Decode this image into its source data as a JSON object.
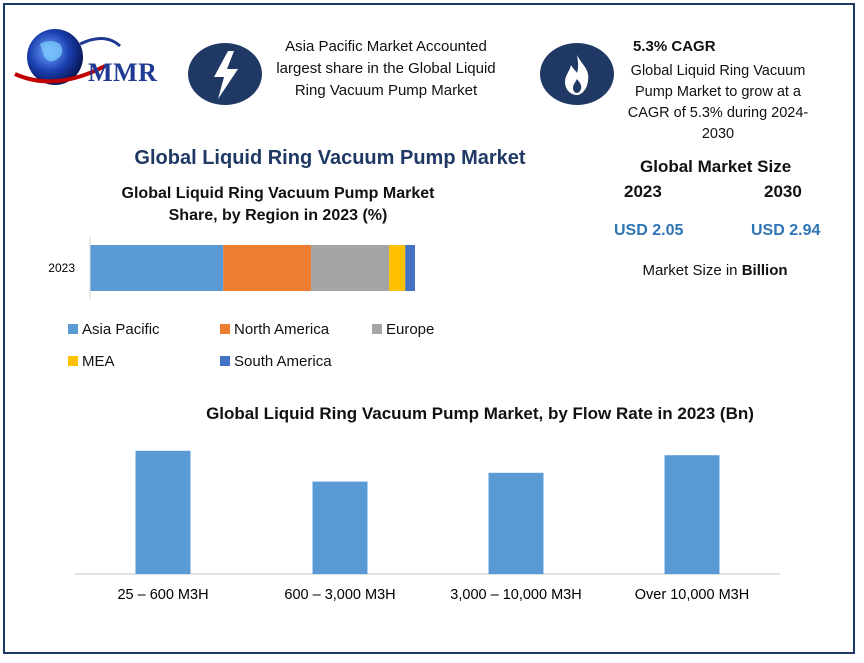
{
  "brand": {
    "logo_text": "MMR"
  },
  "info_left": {
    "icon": "lightning-bolt-icon",
    "lines": [
      "Asia Pacific Market Accounted",
      "largest share in the Global Liquid",
      "Ring Vacuum Pump Market"
    ]
  },
  "info_right": {
    "icon": "flame-icon",
    "title": "5.3% CAGR",
    "lines": [
      "Global Liquid Ring Vacuum",
      "Pump Market to grow at a",
      "CAGR of 5.3% during 2024-",
      "2030"
    ]
  },
  "main_title": "Global Liquid Ring Vacuum Pump Market",
  "market_size": {
    "title": "Global Market Size",
    "year_2023": "2023",
    "year_2030": "2030",
    "value_2023": "USD 2.05",
    "value_2030": "USD 2.94",
    "unit_prefix": "Market Size in",
    "unit_bold": "Billion"
  },
  "colors": {
    "asia_pacific": "#5b9bd5",
    "north_america": "#ed7d31",
    "europe": "#a5a5a5",
    "mea": "#ffc000",
    "south_america": "#4472c4",
    "bar": "#5b9bd5",
    "navy": "#1f3864"
  },
  "chart_data": [
    {
      "type": "bar",
      "orientation": "horizontal-stacked",
      "title": "Global Liquid Ring Vacuum Pump Market Share, by Region in 2023 (%)",
      "categories": [
        "2023"
      ],
      "series": [
        {
          "name": "Asia Pacific",
          "values": [
            41
          ]
        },
        {
          "name": "North America",
          "values": [
            27
          ]
        },
        {
          "name": "Europe",
          "values": [
            24
          ]
        },
        {
          "name": "MEA",
          "values": [
            5
          ]
        },
        {
          "name": "South America",
          "values": [
            3
          ]
        }
      ],
      "legend_position": "bottom"
    },
    {
      "type": "bar",
      "title": "Global Liquid Ring Vacuum Pump Market, by Flow Rate in 2023 (Bn)",
      "categories": [
        "25 – 600 M3H",
        "600 – 3,000 M3H",
        "3,000 – 10,000 M3H",
        "Over 10,000 M3H"
      ],
      "values": [
        0.56,
        0.42,
        0.46,
        0.54
      ],
      "ylim": [
        0,
        0.6
      ]
    }
  ]
}
